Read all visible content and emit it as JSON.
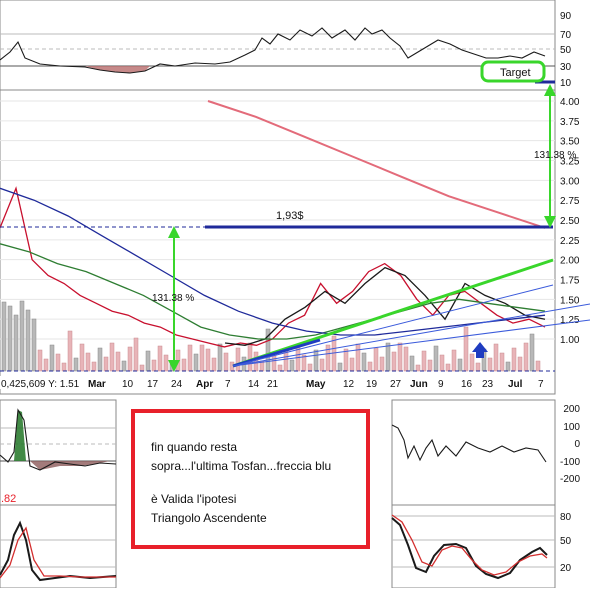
{
  "chart_data": {
    "type": "line",
    "price_panel": {
      "y_ticks": [
        "4.00",
        "3.75",
        "3.50",
        "3.25",
        "3.00",
        "2.75",
        "2.50",
        "2.25",
        "2.00",
        "1.75",
        "1.50",
        "1.25",
        "1.00"
      ],
      "x_ticks": [
        "Mar",
        "10",
        "17",
        "24",
        "Apr",
        "7",
        "14",
        "21",
        "May",
        "12",
        "19",
        "27",
        "Jun",
        "9",
        "16",
        "23",
        "Jul",
        "7"
      ],
      "cursor_readout": "0,425,609   Y: 1.51",
      "series": [
        {
          "color": "#c8102e",
          "values": [
            2.4,
            2.9,
            2.0,
            1.8,
            1.7,
            1.55,
            1.45,
            1.35,
            1.3,
            1.2,
            1.15,
            1.05,
            1.0,
            0.95,
            0.9,
            0.95,
            0.92,
            1.0,
            1.2,
            1.3,
            1.7,
            1.45,
            1.6,
            1.85,
            1.95,
            1.8,
            1.5,
            1.3,
            1.55,
            1.6,
            1.45,
            1.3,
            1.2,
            1.25,
            1.15
          ]
        },
        {
          "color": "#1a1a1a",
          "values": [
            0.95,
            0.92,
            1.0,
            1.25,
            1.4,
            1.6,
            1.45,
            1.7,
            1.9,
            1.8,
            1.55,
            1.25,
            1.7,
            1.55,
            1.45,
            1.3,
            1.25
          ]
        },
        {
          "color": "#2e7d32",
          "values": [
            2.2,
            2.1,
            1.95,
            1.85,
            1.7,
            1.55,
            1.35,
            1.15,
            1.05,
            1.0,
            1.0,
            1.05,
            1.15,
            1.25,
            1.35,
            1.45,
            1.5,
            1.45,
            1.4,
            1.35
          ]
        },
        {
          "color": "#1f2a9a",
          "values": [
            2.9,
            2.75,
            2.55,
            2.3,
            2.05,
            1.8,
            1.55,
            1.35,
            1.2,
            1.1,
            1.05,
            1.05,
            1.1,
            1.15,
            1.2,
            1.25,
            1.3
          ]
        },
        {
          "color": "#e36b7a",
          "values": [
            4.0,
            3.8,
            3.55,
            3.3,
            3.05,
            2.8,
            2.6,
            2.4
          ]
        }
      ],
      "annotations": {
        "resistance_label": "1,93$",
        "left_pct": "131.38 %",
        "right_pct": "131.38 %",
        "target_label": "Target"
      }
    },
    "upper_panel": {
      "y_ticks": [
        "90",
        "70",
        "50",
        "30",
        "10"
      ]
    },
    "left_mid_panel": {
      "y_ticks": []
    },
    "right_mid_panel": {
      "y_ticks": [
        "200",
        "100",
        "0",
        "-100",
        "-200"
      ]
    },
    "bottom_panel": {
      "y_ticks": [
        "80",
        "50",
        "20"
      ],
      "left_value": ".82"
    }
  },
  "note": {
    "line1": "fin quando resta",
    "line2": "sopra...l'ultima Tosfan...freccia blu",
    "line3": "è Valida l'ipotesi",
    "line4": "Triangolo Ascendente"
  }
}
